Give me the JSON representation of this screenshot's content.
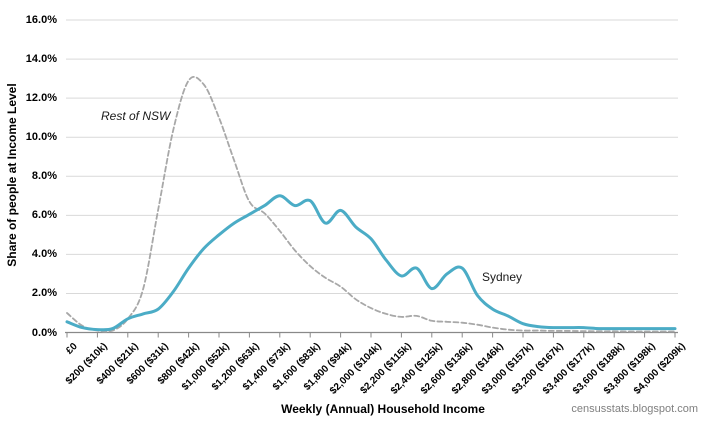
{
  "chart_data": {
    "type": "line",
    "xlabel": "Weekly (Annual) Household Income",
    "ylabel": "Share of people at Income Level",
    "credit": "censusstats.blogspot.com",
    "legend_position": "inline-labels-on-chart",
    "grid": "horizontal",
    "y_axis": {
      "min": 0,
      "max": 16,
      "step": 2,
      "unit": "%",
      "tick_labels": [
        "16.0%",
        "14.0%",
        "12.0%",
        "10.0%",
        "8.0%",
        "6.0%",
        "4.0%",
        "2.0%",
        "0.0%"
      ]
    },
    "x_axis": {
      "tick_labels": [
        "£0",
        "$200 ($10k)",
        "$400 ($21k)",
        "$600 ($31k)",
        "$800 ($42k)",
        "$1,000 ($52k)",
        "$1,200 ($63k)",
        "$1,400 ($73k)",
        "$1,600 ($83k)",
        "$1,800 ($94k)",
        "$2,000 ($104k)",
        "$2,200 ($115k)",
        "$2,400 ($125k)",
        "$2,600 ($136k)",
        "$2,800 ($146k)",
        "$3,000 ($157k)",
        "$3,200 ($167k)",
        "$3,400 ($177k)",
        "$3,600 ($188k)",
        "$3,800 ($198k)",
        "$4,000 ($209k)"
      ],
      "label_weekly_values": [
        0,
        200,
        400,
        600,
        800,
        1000,
        1200,
        1400,
        1600,
        1800,
        2000,
        2200,
        2400,
        2600,
        2800,
        3000,
        3200,
        3400,
        3600,
        3800,
        4000
      ]
    },
    "sample_x_weekly": {
      "start": 0,
      "end": 4000,
      "step": 100
    },
    "series": [
      {
        "name": "Rest of NSW",
        "line_style": "dashed",
        "color": "#a8a8a8",
        "values_pct": [
          1.0,
          0.35,
          0.1,
          0.1,
          0.7,
          2.2,
          6.3,
          10.4,
          12.9,
          12.7,
          11.0,
          8.8,
          6.7,
          6.1,
          5.2,
          4.2,
          3.4,
          2.8,
          2.35,
          1.7,
          1.25,
          0.95,
          0.8,
          0.85,
          0.6,
          0.55,
          0.5,
          0.4,
          0.25,
          0.15,
          0.1,
          0.1,
          0.08,
          0.08,
          0.07,
          0.06,
          0.06,
          0.05,
          0.05,
          0.05,
          0.05
        ]
      },
      {
        "name": "Sydney",
        "line_style": "solid",
        "color": "#4bacc6",
        "values_pct": [
          0.55,
          0.25,
          0.15,
          0.2,
          0.7,
          0.95,
          1.2,
          2.1,
          3.3,
          4.3,
          5.0,
          5.6,
          6.05,
          6.5,
          7.0,
          6.5,
          6.75,
          5.6,
          6.25,
          5.4,
          4.8,
          3.7,
          2.9,
          3.3,
          2.25,
          3.0,
          3.3,
          1.9,
          1.2,
          0.85,
          0.45,
          0.3,
          0.25,
          0.25,
          0.25,
          0.2,
          0.2,
          0.2,
          0.2,
          0.2,
          0.2
        ]
      }
    ],
    "axis_color": "#898989",
    "gridline_color": "#d9d9d9"
  }
}
